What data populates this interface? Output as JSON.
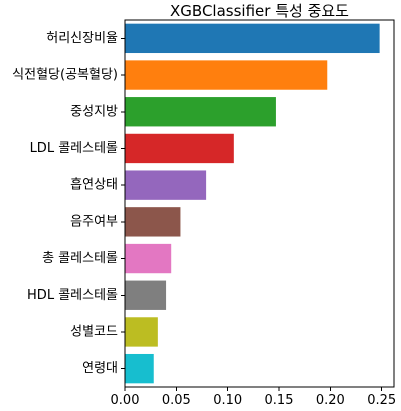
{
  "chart_data": {
    "type": "bar",
    "orientation": "horizontal",
    "title": "XGBClassifier 특성 중요도",
    "xlabel": "",
    "ylabel": "",
    "categories": [
      "허리신장비율",
      "식전혈당(공복혈당)",
      "중성지방",
      "LDL 콜레스테롤",
      "흡연상태",
      "음주여부",
      "총 콜레스테롤",
      "HDL 콜레스테롤",
      "성별코드",
      "연령대"
    ],
    "values": [
      0.248,
      0.197,
      0.147,
      0.106,
      0.079,
      0.054,
      0.045,
      0.04,
      0.032,
      0.028
    ],
    "colors": [
      "#1f77b4",
      "#ff7f0e",
      "#2ca02c",
      "#d62728",
      "#9467bd",
      "#8c564b",
      "#e377c2",
      "#7f7f7f",
      "#bcbd22",
      "#17becf"
    ],
    "xlim": [
      0,
      0.262
    ],
    "xticks": [
      0.0,
      0.05,
      0.1,
      0.15,
      0.2,
      0.25
    ],
    "xtick_labels": [
      "0.00",
      "0.05",
      "0.10",
      "0.15",
      "0.20",
      "0.25"
    ],
    "grid": false,
    "legend": "none"
  }
}
